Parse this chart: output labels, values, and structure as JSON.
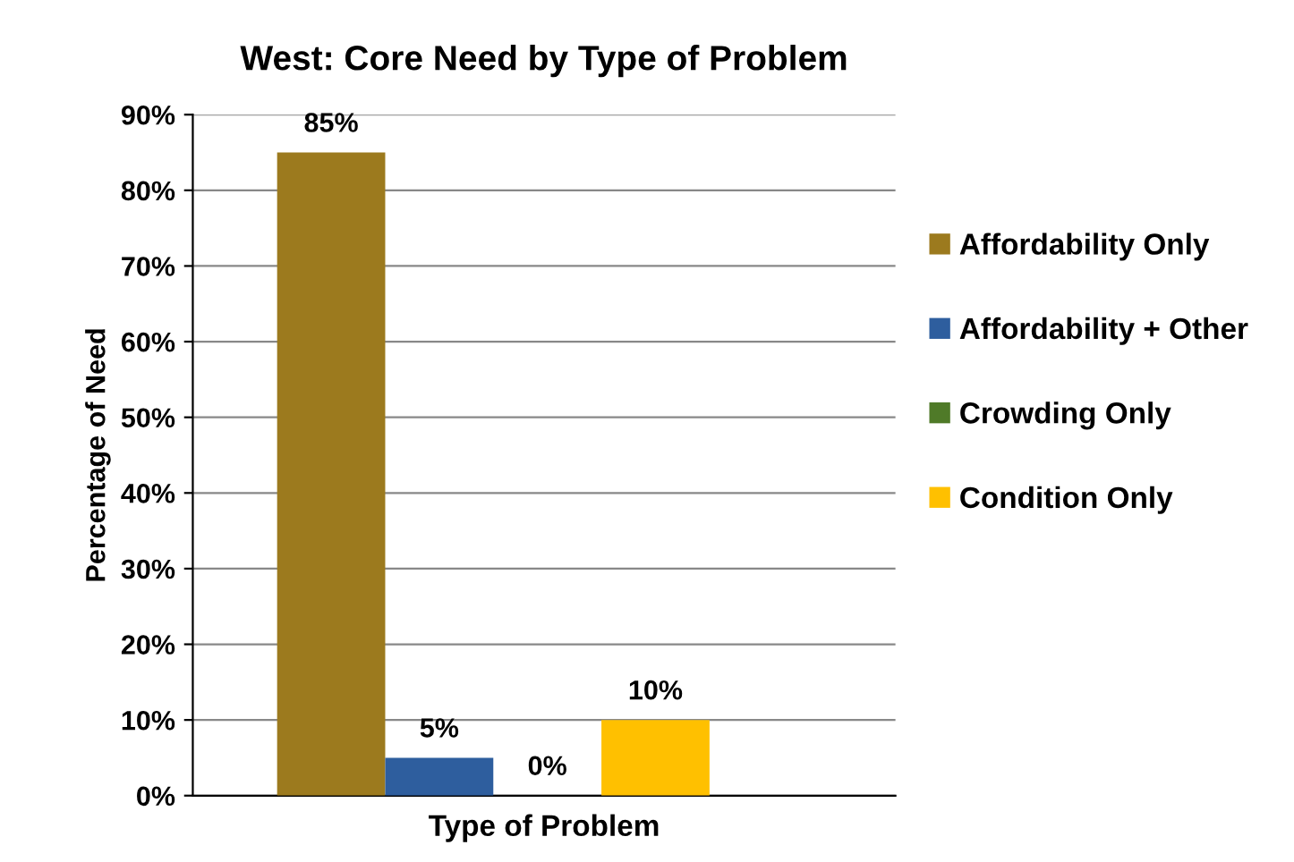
{
  "chart_data": {
    "type": "bar",
    "title": "West: Core Need by Type of Problem",
    "xlabel": "Type of Problem",
    "ylabel": "Percentage of Need",
    "categories": [
      null
    ],
    "series": [
      {
        "name": "Affordability Only",
        "color": "#9c7a1e",
        "values": [
          85
        ],
        "value_labels": [
          "85%"
        ]
      },
      {
        "name": "Affordability + Other",
        "color": "#2e5e9e",
        "values": [
          5
        ],
        "value_labels": [
          "5%"
        ]
      },
      {
        "name": "Crowding Only",
        "color": "#4f7a28",
        "values": [
          0
        ],
        "value_labels": [
          "0%"
        ]
      },
      {
        "name": "Condition Only",
        "color": "#ffc000",
        "values": [
          10
        ],
        "value_labels": [
          "10%"
        ]
      }
    ],
    "ylim": [
      0,
      90
    ],
    "yticks": [
      {
        "value": 0,
        "label": "0%"
      },
      {
        "value": 10,
        "label": "10%"
      },
      {
        "value": 20,
        "label": "20%"
      },
      {
        "value": 30,
        "label": "30%"
      },
      {
        "value": 40,
        "label": "40%"
      },
      {
        "value": 50,
        "label": "50%"
      },
      {
        "value": 60,
        "label": "60%"
      },
      {
        "value": 70,
        "label": "70%"
      },
      {
        "value": 80,
        "label": "80%"
      },
      {
        "value": 90,
        "label": "90%"
      }
    ],
    "grid": "y",
    "legend": "right"
  }
}
